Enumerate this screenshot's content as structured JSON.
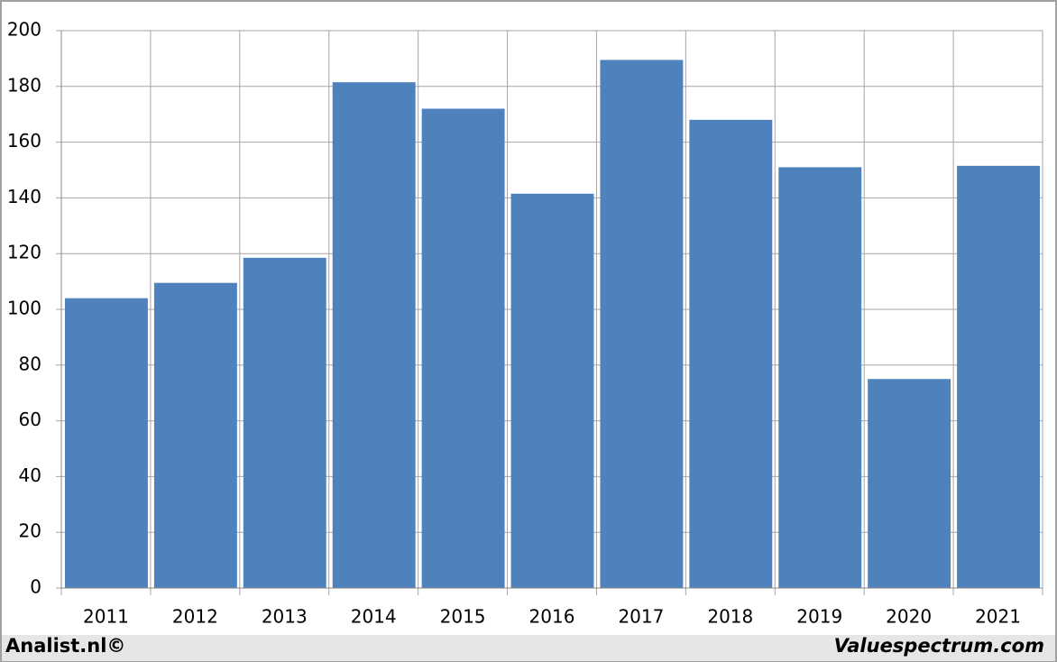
{
  "chart_data": {
    "type": "bar",
    "categories": [
      "2011",
      "2012",
      "2013",
      "2014",
      "2015",
      "2016",
      "2017",
      "2018",
      "2019",
      "2020",
      "2021"
    ],
    "values": [
      104,
      109.5,
      118.5,
      181.5,
      172,
      141.5,
      189.5,
      168,
      151,
      75,
      151.5
    ],
    "color": "#4f81bd",
    "ylim": [
      0,
      200
    ],
    "yticks": [
      0,
      20,
      40,
      60,
      80,
      100,
      120,
      140,
      160,
      180,
      200
    ],
    "grid": true,
    "footer_left": "Analist.nl©",
    "footer_right": "Valuespectrum.com"
  }
}
